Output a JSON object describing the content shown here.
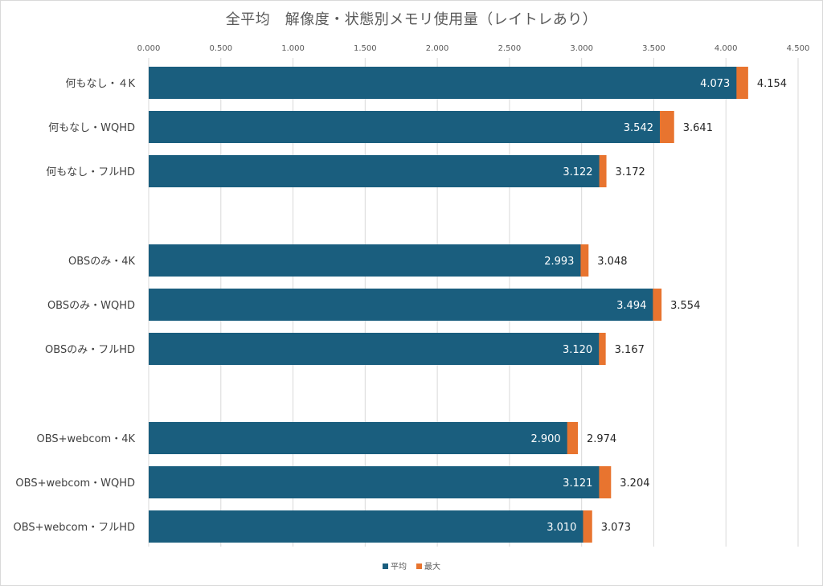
{
  "chart_data": {
    "type": "bar",
    "orientation": "horizontal",
    "title": "全平均　解像度・状態別メモリ使用量（レイトレあり）",
    "categories": [
      "何もなし・４K",
      "何もなし・WQHD",
      "何もなし・フルHD",
      "OBSのみ・4K",
      "OBSのみ・WQHD",
      "OBSのみ・フルHD",
      "OBS+webcom・4K",
      "OBS+webcom・WQHD",
      "OBS+webcom・フルHD"
    ],
    "groups": [
      [
        0,
        1,
        2
      ],
      [
        3,
        4,
        5
      ],
      [
        6,
        7,
        8
      ]
    ],
    "series": [
      {
        "name": "平均",
        "color": "#1a5e7e",
        "values": [
          4.073,
          3.542,
          3.122,
          2.993,
          3.494,
          3.12,
          2.9,
          3.121,
          3.01
        ]
      },
      {
        "name": "最大",
        "color": "#e8742f",
        "values": [
          4.154,
          3.641,
          3.172,
          3.048,
          3.554,
          3.167,
          2.974,
          3.204,
          3.073
        ]
      }
    ],
    "value_labels": {
      "平均": [
        "4.073",
        "3.542",
        "3.122",
        "2.993",
        "3.494",
        "3.120",
        "2.900",
        "3.121",
        "3.010"
      ],
      "最大": [
        "4.154",
        "3.641",
        "3.172",
        "3.048",
        "3.554",
        "3.167",
        "2.974",
        "3.204",
        "3.073"
      ]
    },
    "xlim": [
      0,
      4.5
    ],
    "xticks": [
      "0.000",
      "0.500",
      "1.000",
      "1.500",
      "2.000",
      "2.500",
      "3.000",
      "3.500",
      "4.000",
      "4.500"
    ],
    "axis_position": "top",
    "grid": true,
    "legend": "bottom"
  }
}
